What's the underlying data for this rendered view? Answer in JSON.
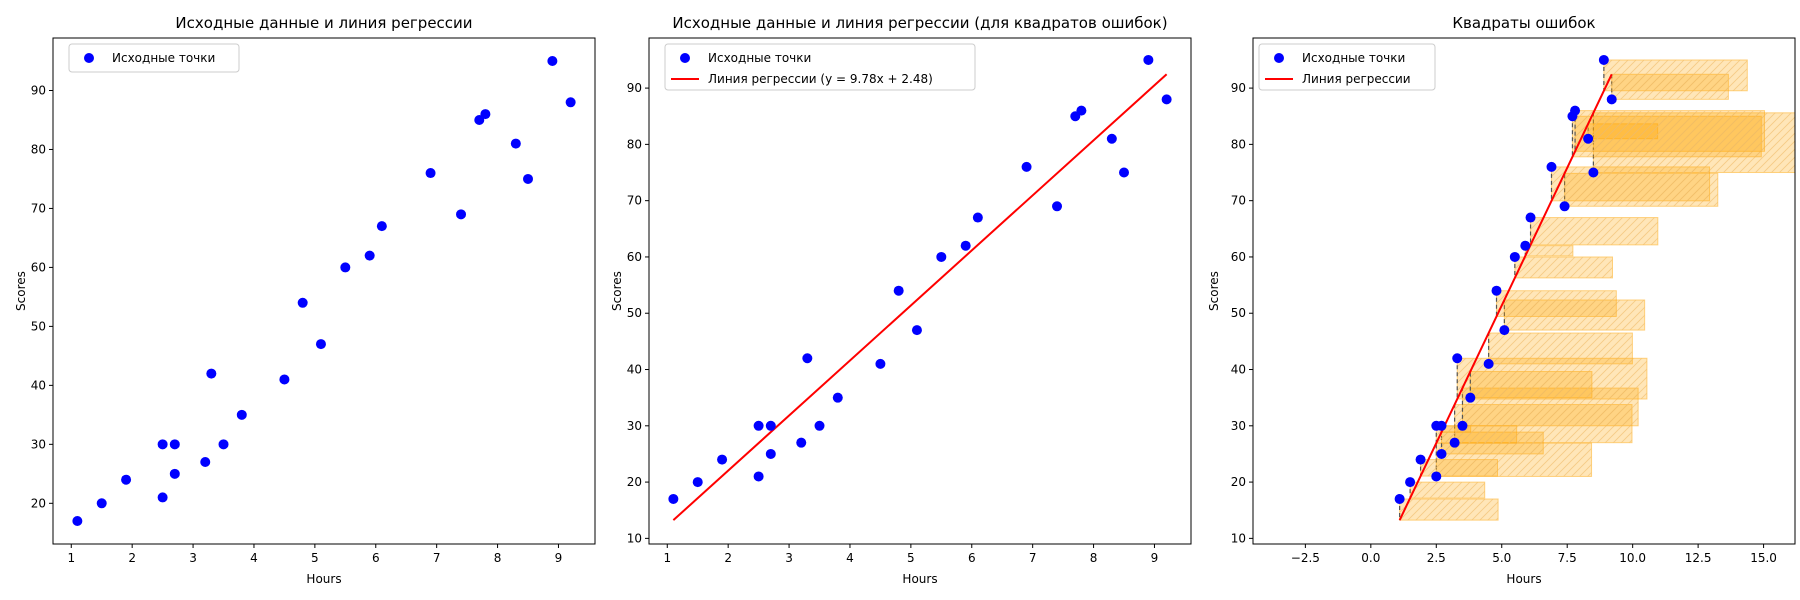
{
  "figure": {
    "background": "#ffffff",
    "point_color": "#0000ff",
    "line_color": "#ff0000",
    "square_color": "#ffa500",
    "residual_color": "#555555"
  },
  "chart_data": [
    {
      "type": "scatter",
      "title": "Исходные данные и линия регрессии",
      "xlabel": "Hours",
      "ylabel": "Scores",
      "xlim": [
        0.7,
        9.6
      ],
      "ylim": [
        13.1,
        98.9
      ],
      "xticks": [
        "1",
        "2",
        "3",
        "4",
        "5",
        "6",
        "7",
        "8",
        "9"
      ],
      "yticks": [
        "20",
        "30",
        "40",
        "50",
        "60",
        "70",
        "80",
        "90"
      ],
      "legend_position": "upper-left",
      "grid": false,
      "series": [
        {
          "name": "Исходные точки",
          "kind": "points",
          "x": [
            2.5,
            5.1,
            3.2,
            8.5,
            3.5,
            1.5,
            9.2,
            5.5,
            8.3,
            2.7,
            7.7,
            5.9,
            4.5,
            3.3,
            1.1,
            8.9,
            2.5,
            1.9,
            6.1,
            7.4,
            2.7,
            4.8,
            3.8,
            6.9,
            7.8
          ],
          "y": [
            21,
            47,
            27,
            75,
            30,
            20,
            88,
            60,
            81,
            25,
            85,
            62,
            41,
            42,
            17,
            95,
            30,
            24,
            67,
            69,
            30,
            54,
            35,
            76,
            86
          ]
        }
      ]
    },
    {
      "type": "scatter",
      "title": "Исходные данные и линия регрессии (для квадратов ошибок)",
      "xlabel": "Hours",
      "ylabel": "Scores",
      "xlim": [
        0.7,
        9.6
      ],
      "ylim": [
        9.0,
        98.9
      ],
      "xticks": [
        "1",
        "2",
        "3",
        "4",
        "5",
        "6",
        "7",
        "8",
        "9"
      ],
      "yticks": [
        "10",
        "20",
        "30",
        "40",
        "50",
        "60",
        "70",
        "80",
        "90"
      ],
      "legend_position": "upper-left",
      "grid": false,
      "series": [
        {
          "name": "Исходные точки",
          "kind": "points",
          "x": [
            2.5,
            5.1,
            3.2,
            8.5,
            3.5,
            1.5,
            9.2,
            5.5,
            8.3,
            2.7,
            7.7,
            5.9,
            4.5,
            3.3,
            1.1,
            8.9,
            2.5,
            1.9,
            6.1,
            7.4,
            2.7,
            4.8,
            3.8,
            6.9,
            7.8
          ],
          "y": [
            21,
            47,
            27,
            75,
            30,
            20,
            88,
            60,
            81,
            25,
            85,
            62,
            41,
            42,
            17,
            95,
            30,
            24,
            67,
            69,
            30,
            54,
            35,
            76,
            86
          ]
        },
        {
          "name": "Линия регрессии (y = 9.78x + 2.48)",
          "kind": "line",
          "slope": 9.78,
          "intercept": 2.48,
          "x": [
            1.1,
            9.2
          ]
        }
      ]
    },
    {
      "type": "scatter",
      "title": "Квадраты ошибок",
      "xlabel": "Hours",
      "ylabel": "Scores",
      "xlim": [
        -4.5,
        16.2
      ],
      "ylim": [
        9.0,
        98.9
      ],
      "xticks": [
        "−2.5",
        "0.0",
        "2.5",
        "5.0",
        "7.5",
        "10.0",
        "12.5",
        "15.0"
      ],
      "yticks": [
        "10",
        "20",
        "30",
        "40",
        "50",
        "60",
        "70",
        "80",
        "90"
      ],
      "legend_position": "upper-left",
      "grid": false,
      "series": [
        {
          "name": "Исходные точки",
          "kind": "points",
          "x": [
            2.5,
            5.1,
            3.2,
            8.5,
            3.5,
            1.5,
            9.2,
            5.5,
            8.3,
            2.7,
            7.7,
            5.9,
            4.5,
            3.3,
            1.1,
            8.9,
            2.5,
            1.9,
            6.1,
            7.4,
            2.7,
            4.8,
            3.8,
            6.9,
            7.8
          ],
          "y": [
            21,
            47,
            27,
            75,
            30,
            20,
            88,
            60,
            81,
            25,
            85,
            62,
            41,
            42,
            17,
            95,
            30,
            24,
            67,
            69,
            30,
            54,
            35,
            76,
            86
          ]
        },
        {
          "name": "Линия регрессии",
          "kind": "line",
          "slope": 9.78,
          "intercept": 2.48,
          "x": [
            1.1,
            9.2
          ]
        },
        {
          "kind": "squared-errors",
          "slope": 9.78,
          "intercept": 2.48,
          "x": [
            2.5,
            5.1,
            3.2,
            8.5,
            3.5,
            1.5,
            9.2,
            5.5,
            8.3,
            2.7,
            7.7,
            5.9,
            4.5,
            3.3,
            1.1,
            8.9,
            2.5,
            1.9,
            6.1,
            7.4,
            2.7,
            4.8,
            3.8,
            6.9,
            7.8
          ],
          "y": [
            21,
            47,
            27,
            75,
            30,
            20,
            88,
            60,
            81,
            25,
            85,
            62,
            41,
            42,
            17,
            95,
            30,
            24,
            67,
            69,
            30,
            54,
            35,
            76,
            86
          ]
        }
      ]
    }
  ]
}
